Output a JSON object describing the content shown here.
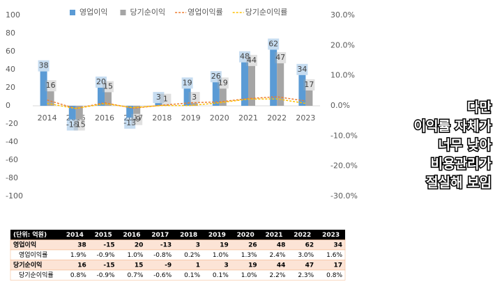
{
  "chart_data": {
    "type": "bar",
    "categories": [
      "2014",
      "2015",
      "2016",
      "2017",
      "2018",
      "2019",
      "2020",
      "2021",
      "2022",
      "2023"
    ],
    "series": [
      {
        "name": "영업이익",
        "type": "bar",
        "color": "#5b9bd5",
        "values": [
          38,
          -15,
          20,
          -13,
          3,
          19,
          26,
          48,
          62,
          34
        ]
      },
      {
        "name": "당기순이익",
        "type": "bar",
        "color": "#a5a5a5",
        "values": [
          16,
          -15,
          15,
          -9,
          1,
          3,
          19,
          44,
          47,
          17
        ]
      },
      {
        "name": "영업이익률",
        "type": "line",
        "axis": "y2",
        "color": "#ed7d31",
        "values": [
          1.9,
          -0.9,
          1.0,
          -0.8,
          0.2,
          1.0,
          1.3,
          2.4,
          3.0,
          1.6
        ]
      },
      {
        "name": "당기순이익률",
        "type": "line",
        "axis": "y2",
        "color": "#ffc000",
        "values": [
          0.8,
          -0.9,
          0.7,
          -0.6,
          0.1,
          0.1,
          1.0,
          2.2,
          2.3,
          0.8
        ]
      }
    ],
    "ylim": [
      -100,
      100
    ],
    "yticks": [
      -100,
      -80,
      -60,
      -40,
      -20,
      0,
      20,
      40,
      60,
      80,
      100
    ],
    "y2lim": [
      -30,
      30
    ],
    "y2ticks": [
      {
        "value": -30,
        "label": "-30.0%"
      },
      {
        "value": -20,
        "label": "-20.0%"
      },
      {
        "value": -10,
        "label": "-10.0%"
      },
      {
        "value": 0,
        "label": "0.0%"
      },
      {
        "value": 10,
        "label": "10.0%"
      },
      {
        "value": 20,
        "label": "20.0%"
      },
      {
        "value": 30,
        "label": "30.0%"
      }
    ],
    "legend": "top"
  },
  "table": {
    "header": [
      "(단위: 억원)",
      "2014",
      "2015",
      "2016",
      "2017",
      "2018",
      "2019",
      "2020",
      "2021",
      "2022",
      "2023"
    ],
    "rows": [
      [
        "영업이익",
        "38",
        "-15",
        "20",
        "-13",
        "3",
        "19",
        "26",
        "48",
        "62",
        "34"
      ],
      [
        "영업이익률",
        "1.9%",
        "-0.9%",
        "1.0%",
        "-0.8%",
        "0.2%",
        "1.0%",
        "1.3%",
        "2.4%",
        "3.0%",
        "1.6%"
      ],
      [
        "당기순이익",
        "16",
        "-15",
        "15",
        "-9",
        "1",
        "3",
        "19",
        "44",
        "47",
        "17"
      ],
      [
        "당기순이익률",
        "0.8%",
        "-0.9%",
        "0.7%",
        "-0.6%",
        "0.1%",
        "0.1%",
        "1.0%",
        "2.2%",
        "2.3%",
        "0.8%"
      ]
    ]
  },
  "caption": [
    "다만",
    "이익률 자체가",
    "너무 낮아",
    "비용관리가",
    "절실해 보임"
  ]
}
